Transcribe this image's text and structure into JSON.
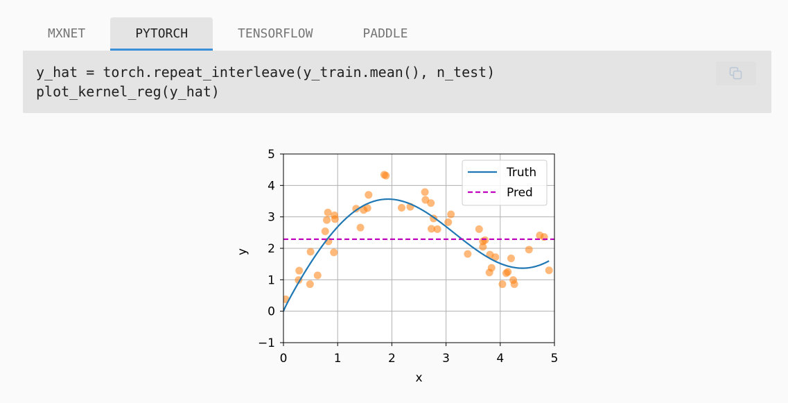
{
  "tabs": [
    {
      "label": "MXNET",
      "active": false
    },
    {
      "label": "PYTORCH",
      "active": true
    },
    {
      "label": "TENSORFLOW",
      "active": false
    },
    {
      "label": "PADDLE",
      "active": false
    }
  ],
  "code": {
    "lines": [
      "y_hat = torch.repeat_interleave(y_train.mean(), n_test)",
      "plot_kernel_reg(y_hat)"
    ],
    "copy_icon": "copy-icon"
  },
  "chart_data": {
    "type": "line",
    "title": "",
    "xlabel": "x",
    "ylabel": "y",
    "xlim": [
      0,
      5
    ],
    "ylim": [
      -1,
      5
    ],
    "xticks": [
      0,
      1,
      2,
      3,
      4,
      5
    ],
    "yticks": [
      -1,
      0,
      1,
      2,
      3,
      4,
      5
    ],
    "xtick_labels": [
      "0",
      "1",
      "2",
      "3",
      "4",
      "5"
    ],
    "ytick_labels": [
      "−1",
      "0",
      "1",
      "2",
      "3",
      "4",
      "5"
    ],
    "grid": true,
    "legend_position": "top-right",
    "legend": [
      "Truth",
      "Pred"
    ],
    "series": [
      {
        "name": "Truth",
        "style": "solid",
        "color": "#1f77b4",
        "function": "2*sin(x) + x^0.8"
      },
      {
        "name": "Pred",
        "style": "dashed",
        "color": "#bf00bf",
        "x": [
          0,
          5
        ],
        "y": [
          2.29,
          2.29
        ]
      }
    ],
    "scatter": {
      "color": "#ff7f0e",
      "x": [
        0.04,
        0.28,
        0.29,
        0.49,
        0.5,
        0.63,
        0.77,
        0.8,
        0.82,
        0.83,
        0.93,
        0.94,
        0.95,
        1.34,
        1.42,
        1.48,
        1.55,
        1.57,
        1.86,
        1.89,
        2.18,
        2.34,
        2.61,
        2.62,
        2.72,
        2.73,
        2.77,
        2.84,
        3.04,
        3.09,
        3.4,
        3.61,
        3.68,
        3.68,
        3.72,
        3.8,
        3.81,
        3.84,
        3.91,
        4.04,
        4.11,
        4.14,
        4.2,
        4.24,
        4.26,
        4.53,
        4.73,
        4.81,
        4.9
      ],
      "y": [
        0.38,
        0.99,
        1.29,
        0.86,
        1.89,
        1.14,
        2.54,
        2.9,
        3.14,
        2.22,
        1.87,
        3.05,
        2.93,
        3.26,
        2.66,
        3.22,
        3.28,
        3.7,
        4.34,
        4.31,
        3.29,
        3.32,
        3.79,
        3.54,
        3.44,
        2.62,
        2.95,
        2.61,
        2.83,
        3.08,
        1.82,
        2.61,
        2.05,
        2.22,
        2.26,
        1.23,
        1.8,
        1.38,
        1.72,
        0.86,
        1.21,
        1.25,
        1.68,
        0.99,
        0.86,
        1.96,
        2.41,
        2.36,
        1.3
      ]
    }
  }
}
